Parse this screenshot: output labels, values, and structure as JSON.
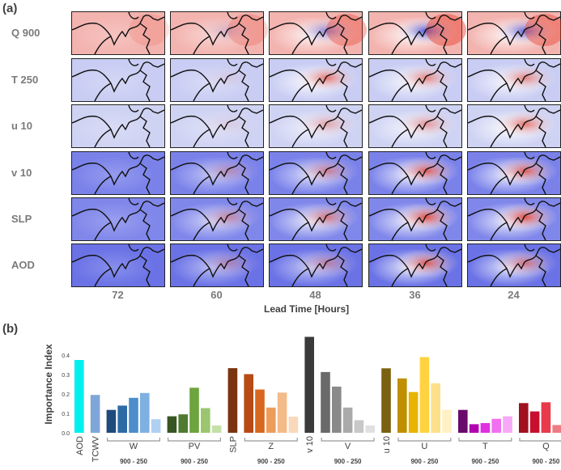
{
  "panel_a_label": "(a)",
  "panel_b_label": "(b)",
  "grid": {
    "rows": [
      "Q 900",
      "T 250",
      "u 10",
      "v 10",
      "SLP",
      "AOD"
    ],
    "columns": [
      "72",
      "60",
      "48",
      "36",
      "24"
    ],
    "xlabel": "Lead Time [Hours]"
  },
  "colors": {
    "red": "#e8402f",
    "blue": "#4b55e6",
    "neutral": "#ffffff"
  },
  "chart_data": {
    "type": "bar",
    "title": "",
    "ylabel": "Importance Index",
    "ylim": [
      0,
      0.5
    ],
    "yticks": [
      "0.0",
      "0.1",
      "0.2",
      "0.3",
      "0.4"
    ],
    "groups": [
      {
        "name": "AOD",
        "sublabel": "",
        "values": [
          0.375
        ],
        "colors": [
          "#00f0f0"
        ]
      },
      {
        "name": "TCWV",
        "sublabel": "",
        "values": [
          0.195
        ],
        "colors": [
          "#7fa6d8"
        ]
      },
      {
        "name": "W",
        "sublabel": "900 - 250",
        "values": [
          0.118,
          0.14,
          0.18,
          0.205,
          0.07
        ],
        "colors": [
          "#1e4a7c",
          "#2d6aa6",
          "#4d8dcb",
          "#7fb0e2",
          "#afd0f0"
        ]
      },
      {
        "name": "PV",
        "sublabel": "900 - 250",
        "values": [
          0.085,
          0.095,
          0.232,
          0.127,
          0.038
        ],
        "colors": [
          "#375623",
          "#4f7a30",
          "#6ea43d",
          "#9bc66f",
          "#c5e0a8"
        ]
      },
      {
        "name": "SLP",
        "sublabel": "",
        "values": [
          0.333
        ],
        "colors": [
          "#7a3410"
        ]
      },
      {
        "name": "Z",
        "sublabel": "900 - 250",
        "values": [
          0.302,
          0.223,
          0.13,
          0.207,
          0.083
        ],
        "colors": [
          "#b84a14",
          "#d8681f",
          "#ee9c5a",
          "#f4ba88",
          "#f9d8bc"
        ]
      },
      {
        "name": "v 10",
        "sublabel": "",
        "values": [
          0.494
        ],
        "colors": [
          "#3a3a3a"
        ]
      },
      {
        "name": "V",
        "sublabel": "900 - 250",
        "values": [
          0.313,
          0.238,
          0.13,
          0.065,
          0.038
        ],
        "colors": [
          "#6a6a6a",
          "#8a8a8a",
          "#aaaaaa",
          "#c8c8c8",
          "#e0e0e0"
        ]
      },
      {
        "name": "u 10",
        "sublabel": "",
        "values": [
          0.332
        ],
        "colors": [
          "#7a6010"
        ]
      },
      {
        "name": "U",
        "sublabel": "900 - 250",
        "values": [
          0.28,
          0.21,
          0.39,
          0.255,
          0.118
        ],
        "colors": [
          "#bf8f00",
          "#e8b400",
          "#ffd23f",
          "#ffe08a",
          "#fff1c4"
        ]
      },
      {
        "name": "T",
        "sublabel": "900 - 250",
        "values": [
          0.118,
          0.044,
          0.05,
          0.072,
          0.085
        ],
        "colors": [
          "#6a0a6a",
          "#b000b0",
          "#e030e0",
          "#f070f0",
          "#f7a8f7"
        ]
      },
      {
        "name": "Q",
        "sublabel": "900 - 250",
        "values": [
          0.153,
          0.11,
          0.157,
          0.04,
          0.04
        ],
        "colors": [
          "#a0101f",
          "#c8102e",
          "#e83a4a",
          "#f07a84",
          "#f6aab0"
        ]
      }
    ]
  }
}
